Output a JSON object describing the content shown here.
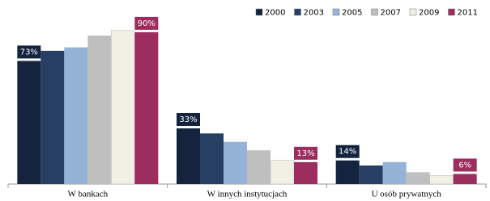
{
  "chart_data": {
    "type": "bar",
    "categories": [
      "W bankach",
      "W innych instytucjach",
      "U osób prywatnych"
    ],
    "series": [
      {
        "name": "2000",
        "color": "#14243f",
        "values": [
          73,
          33,
          14
        ],
        "value_labels": [
          "73%",
          "33%",
          "14%"
        ]
      },
      {
        "name": "2003",
        "color": "#263f63",
        "values": [
          79,
          30,
          11
        ]
      },
      {
        "name": "2005",
        "color": "#95b3d7",
        "values": [
          81,
          25,
          13
        ]
      },
      {
        "name": "2007",
        "color": "#bfbfbf",
        "values": [
          88,
          20,
          7
        ]
      },
      {
        "name": "2009",
        "color": "#f2f0e4",
        "values": [
          91,
          14,
          5
        ]
      },
      {
        "name": "2011",
        "color": "#9b2d5f",
        "values": [
          90,
          13,
          6
        ],
        "value_labels": [
          "90%",
          "13%",
          "6%"
        ]
      }
    ],
    "ylim": [
      0,
      100
    ],
    "legend": "top-right"
  }
}
